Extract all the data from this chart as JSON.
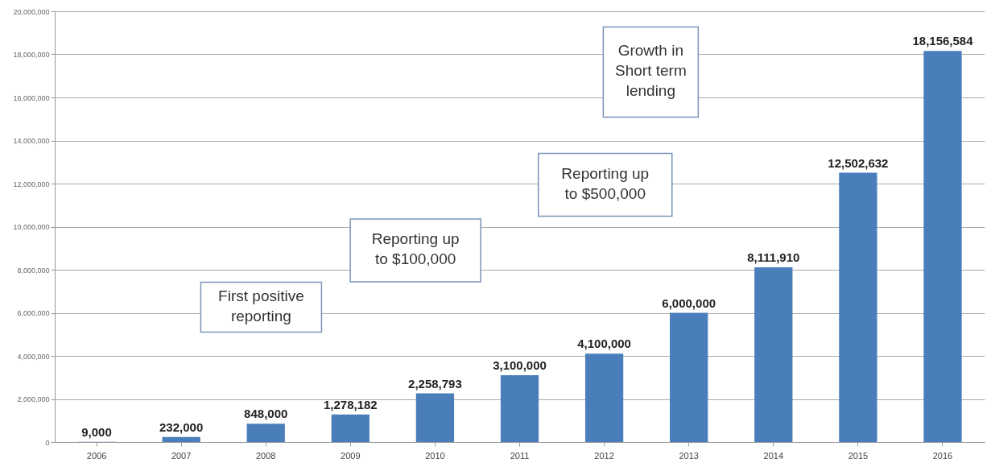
{
  "chart_data": {
    "type": "bar",
    "categories": [
      "2006",
      "2007",
      "2008",
      "2009",
      "2010",
      "2011",
      "2012",
      "2013",
      "2014",
      "2015",
      "2016"
    ],
    "values": [
      9000,
      232000,
      848000,
      1278182,
      2258793,
      3100000,
      4100000,
      6000000,
      8111910,
      12502632,
      18156584
    ],
    "value_labels": [
      "9,000",
      "232,000",
      "848,000",
      "1,278,182",
      "2,258,793",
      "3,100,000",
      "4,100,000",
      "6,000,000",
      "8,111,910",
      "12,502,632",
      "18,156,584"
    ],
    "color": "#4a7ebb",
    "ylim": [
      0,
      20000000
    ],
    "yticks": [
      0,
      {
        "value": 2000000,
        "label": "2,000,000"
      },
      {
        "value": 4000000,
        "label": "4,000,000"
      },
      {
        "value": 6000000,
        "label": "6,000,000"
      },
      {
        "value": 8000000,
        "label": "8,000,000"
      },
      {
        "value": 10000000,
        "label": "10,000,000"
      },
      {
        "value": 12000000,
        "label": "12,000,000"
      },
      {
        "value": 14000000,
        "label": "14,000,000"
      },
      {
        "value": 16000000,
        "label": "16,000,000"
      },
      {
        "value": 18000000,
        "label": "18,000,000"
      },
      {
        "value": 20000000,
        "label": "20,000,000"
      }
    ],
    "grid": "y",
    "annotations": [
      "First positive\nreporting",
      "Reporting up\nto $100,000",
      "Reporting up\nto $500,000",
      "Growth in\nShort term\nlending"
    ]
  }
}
